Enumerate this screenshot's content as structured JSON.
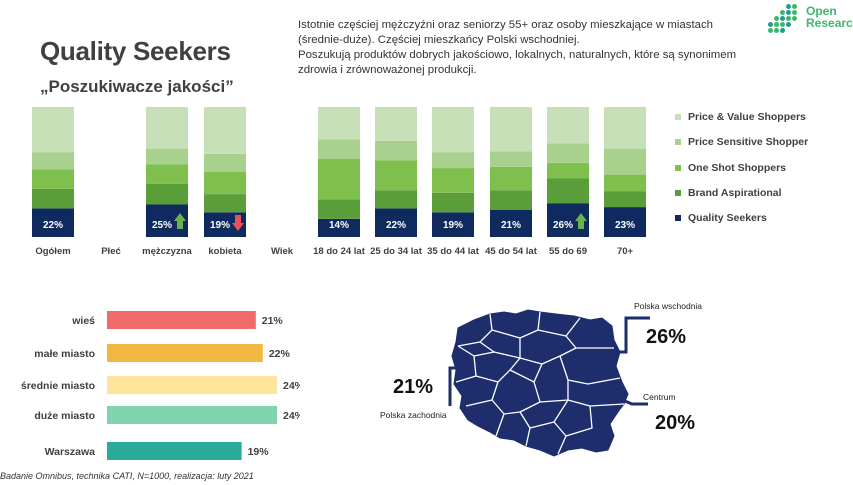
{
  "header": {
    "title": "Quality Seekers",
    "subtitle": "„Poszukiwacze jakości”",
    "description": [
      "Istotnie częściej mężczyźni oraz seniorzy 55+ oraz osoby mieszkające w miastach",
      "(średnie-duże). Częściej mieszkańcy Polski wschodniej.",
      "Poszukują produktów dobrych jakościowo, lokalnych, naturalnych, które są synonimem",
      "zdrowia i zrównoważonej produkcji."
    ]
  },
  "logo": {
    "line1": "Open",
    "line2": "Research",
    "color": "#3db86b"
  },
  "chart_data": [
    {
      "type": "bar",
      "stacked": true,
      "categories": [
        "Ogółem",
        "Płeć",
        "mężczyzna",
        "kobieta",
        "Wiek",
        "18 do 24 lat",
        "25 do 34 lat",
        "35 do 44 lat",
        "45 do 54 lat",
        "55 do 69",
        "70+"
      ],
      "series": [
        {
          "name": "Quality Seekers",
          "color": "#0f2a5f",
          "values": [
            22,
            null,
            25,
            19,
            null,
            14,
            22,
            19,
            21,
            26,
            23
          ]
        },
        {
          "name": "Brand Aspirational",
          "color": "#5a9e3a",
          "values": [
            15,
            null,
            16,
            14,
            null,
            15,
            14,
            15,
            15,
            19,
            12
          ]
        },
        {
          "name": "One Shot Shoppers",
          "color": "#7fbf4d",
          "values": [
            15,
            null,
            15,
            17,
            null,
            31,
            23,
            19,
            18,
            12,
            13
          ]
        },
        {
          "name": "Price Sensitive Shopper",
          "color": "#a9d18e",
          "values": [
            13,
            null,
            12,
            14,
            null,
            15,
            15,
            12,
            12,
            15,
            20
          ]
        },
        {
          "name": "Price & Value Shoppers",
          "color": "#c8e0b8",
          "values": [
            35,
            null,
            32,
            36,
            null,
            25,
            26,
            35,
            34,
            28,
            32
          ]
        }
      ],
      "data_labels": [
        "22%",
        "",
        "25%",
        "19%",
        "",
        "14%",
        "22%",
        "19%",
        "21%",
        "26%",
        "23%"
      ],
      "significance": [
        null,
        null,
        "up",
        "down",
        null,
        null,
        null,
        null,
        null,
        "up",
        null
      ],
      "legend_order": [
        "Price & Value Shoppers",
        "Price Sensitive Shopper",
        "One Shot Shoppers",
        "Brand Aspirational",
        "Quality Seekers"
      ],
      "legend_position": "right",
      "ylim": [
        0,
        100
      ],
      "grid": false
    },
    {
      "type": "bar",
      "orientation": "horizontal",
      "categories": [
        "wieś",
        "małe miasto",
        "średnie miasto",
        "duże miasto",
        "Warszawa"
      ],
      "values": [
        21,
        22,
        24,
        24,
        19
      ],
      "value_labels": [
        "21%",
        "22%",
        "24%",
        "24%",
        "19%"
      ],
      "colors": [
        "#f26b6b",
        "#f2b740",
        "#fde49a",
        "#7fd4ad",
        "#2aab9a"
      ],
      "xlim": [
        0,
        24
      ],
      "grid": false
    }
  ],
  "map": {
    "fill_color": "#1e2d6b",
    "regions": [
      {
        "name": "Polska wschodnia",
        "value": "26%"
      },
      {
        "name": "Polska zachodnia",
        "value": "21%"
      },
      {
        "name": "Centrum",
        "value": "20%"
      }
    ]
  },
  "arrow_colors": {
    "up": "#6ab04c",
    "down": "#e8505b"
  },
  "footnote": "Badanie Omnibus, technika CATI, N=1000, realizacja: luty 2021"
}
